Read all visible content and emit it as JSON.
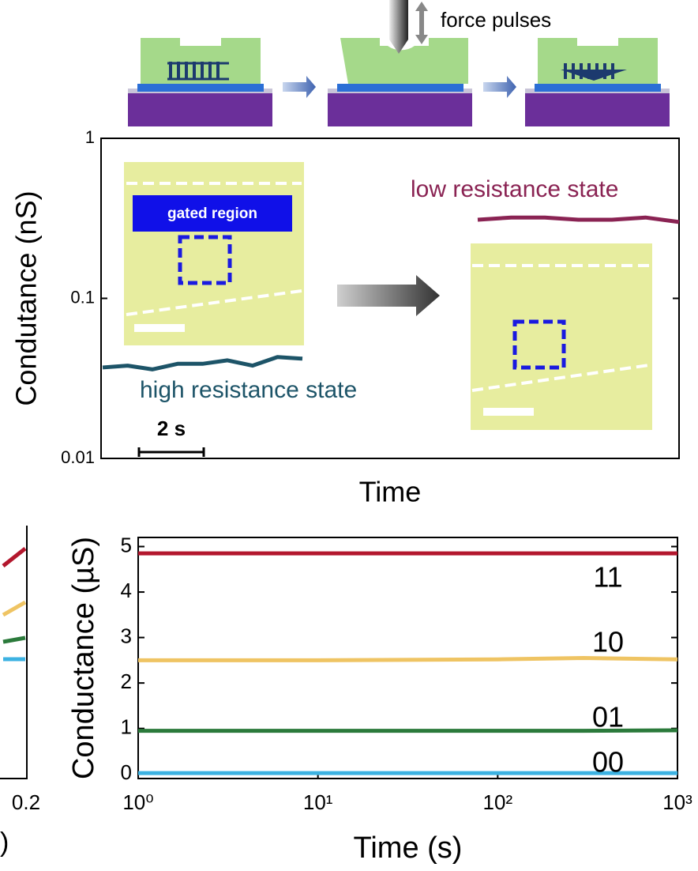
{
  "chart_data": [
    {
      "type": "line",
      "y_label": "Condutance (nS)",
      "x_label": "Time",
      "y_scale": "log",
      "ylim": [
        0.01,
        1
      ],
      "yticks": [
        0.01,
        0.1,
        1
      ],
      "scale_bar": "2 s",
      "inset_label": "gated region",
      "series": [
        {
          "name": "high resistance state",
          "color": "#1d5468",
          "values": [
            0.037,
            0.038,
            0.036,
            0.039,
            0.039,
            0.041,
            0.038,
            0.043,
            0.042
          ]
        },
        {
          "name": "low resistance state",
          "color": "#8a2353",
          "values": [
            0.31,
            0.32,
            0.32,
            0.31,
            0.31,
            0.32,
            0.3
          ]
        }
      ]
    },
    {
      "type": "line",
      "y_label": "Conductance (µS)",
      "x_label": "Time (s)",
      "x_scale": "log",
      "xlim": [
        1,
        1000
      ],
      "xticks": [
        {
          "value": 1,
          "label": "10⁰"
        },
        {
          "value": 10,
          "label": "10¹"
        },
        {
          "value": 100,
          "label": "10²"
        },
        {
          "value": 1000,
          "label": "10³"
        }
      ],
      "ylim": [
        -0.1,
        5.2
      ],
      "yticks": [
        0,
        1,
        2,
        3,
        4,
        5
      ],
      "x": [
        1,
        10,
        100,
        300,
        1000
      ],
      "series": [
        {
          "name": "11",
          "color": "#b3172d",
          "values": [
            4.85,
            4.85,
            4.85,
            4.85,
            4.85
          ]
        },
        {
          "name": "10",
          "color": "#efc463",
          "values": [
            2.5,
            2.5,
            2.52,
            2.55,
            2.52
          ]
        },
        {
          "name": "01",
          "color": "#2b7a3b",
          "values": [
            0.95,
            0.95,
            0.95,
            0.95,
            0.96
          ]
        },
        {
          "name": "00",
          "color": "#3cb2e2",
          "values": [
            0.02,
            0.02,
            0.02,
            0.02,
            0.02
          ]
        }
      ]
    }
  ],
  "schematic": {
    "label": "force pulses"
  },
  "partial_panel": {
    "x_tick": "0.2",
    "x_label_fragment": ")"
  }
}
